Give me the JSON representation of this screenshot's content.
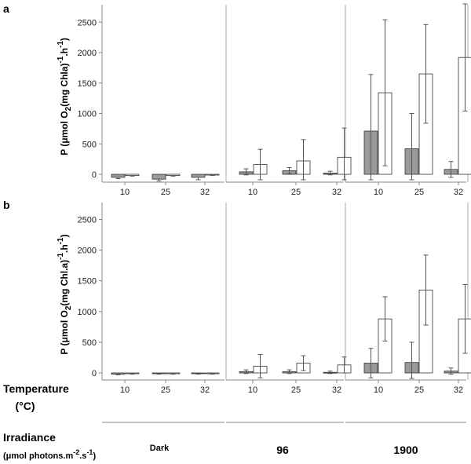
{
  "chart_data": [
    {
      "type": "bar",
      "panel": "a",
      "ylabel": "P (μmol O2(mg Chla)-1.h-1)",
      "ylim": [
        -100,
        2600
      ],
      "yticks": [
        0,
        500,
        1000,
        1500,
        2000,
        2500
      ],
      "categories": [
        "Dark 10",
        "Dark 25",
        "Dark 32",
        "96 10",
        "96 25",
        "96 32",
        "1900 10",
        "1900 25",
        "1900 32"
      ],
      "series": [
        {
          "name": "grey",
          "color": "#9a9a9a",
          "values": [
            -50,
            -80,
            -50,
            40,
            60,
            20,
            710,
            420,
            80
          ],
          "errors": [
            20,
            30,
            40,
            50,
            50,
            30,
            930,
            580,
            130
          ]
        },
        {
          "name": "white",
          "color": "#ffffff",
          "values": [
            -20,
            -20,
            -10,
            160,
            220,
            280,
            1340,
            1650,
            1920
          ],
          "errors": [
            10,
            10,
            10,
            250,
            350,
            480,
            1200,
            810,
            880
          ]
        }
      ]
    },
    {
      "type": "bar",
      "panel": "b",
      "ylabel": "P (μmol O2(mg Chl.a)-1.h-1)",
      "ylim": [
        -100,
        2600
      ],
      "yticks": [
        0,
        500,
        1000,
        1500,
        2000,
        2500
      ],
      "categories": [
        "Dark 10",
        "Dark 25",
        "Dark 32",
        "96 10",
        "96 25",
        "96 32",
        "1900 10",
        "1900 25",
        "1900 32"
      ],
      "series": [
        {
          "name": "grey",
          "color": "#9a9a9a",
          "values": [
            -20,
            -10,
            -10,
            20,
            20,
            10,
            160,
            170,
            30
          ],
          "errors": [
            10,
            10,
            10,
            30,
            30,
            20,
            240,
            330,
            50
          ]
        },
        {
          "name": "white",
          "color": "#ffffff",
          "values": [
            -10,
            -10,
            -10,
            110,
            160,
            130,
            880,
            1350,
            880
          ],
          "errors": [
            10,
            10,
            10,
            190,
            120,
            130,
            360,
            570,
            560
          ]
        }
      ]
    }
  ],
  "temperature_ticks": [
    "10",
    "25",
    "32",
    "10",
    "25",
    "32",
    "10",
    "25",
    "32"
  ],
  "footer": {
    "temperature_label": "Temperature",
    "temperature_unit": "(°C)",
    "irradiance_label": "Irradiance",
    "irradiance_unit": "(μmol photons.m-2.s-1)",
    "groups": [
      "Dark",
      "96",
      "1900"
    ]
  }
}
